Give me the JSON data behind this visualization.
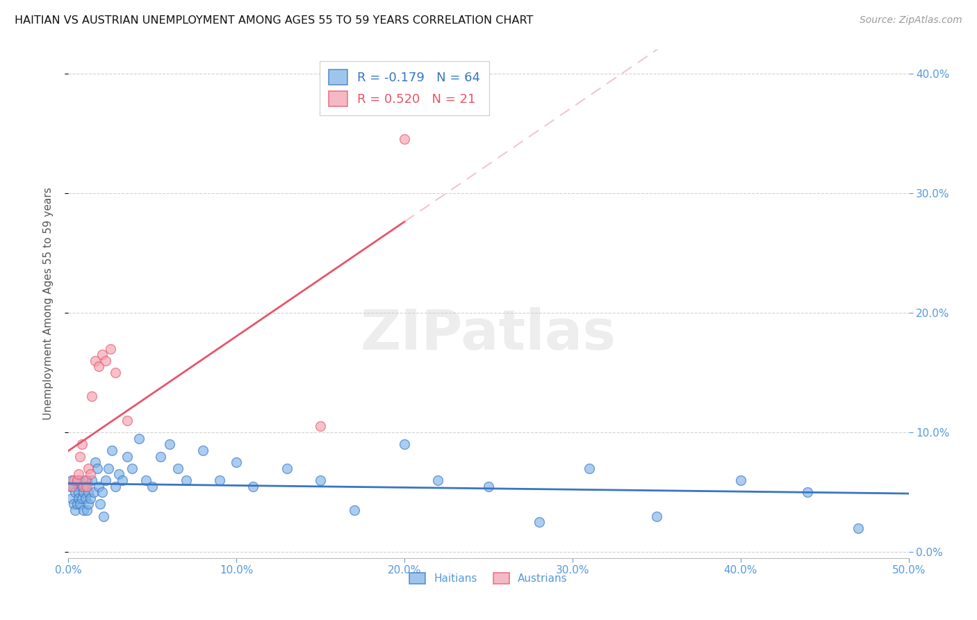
{
  "title": "HAITIAN VS AUSTRIAN UNEMPLOYMENT AMONG AGES 55 TO 59 YEARS CORRELATION CHART",
  "source": "Source: ZipAtlas.com",
  "ylabel": "Unemployment Among Ages 55 to 59 years",
  "xlim": [
    0.0,
    0.5
  ],
  "ylim": [
    -0.005,
    0.42
  ],
  "xticks": [
    0.0,
    0.1,
    0.2,
    0.3,
    0.4,
    0.5
  ],
  "yticks": [
    0.0,
    0.1,
    0.2,
    0.3,
    0.4
  ],
  "haitians_R": -0.179,
  "haitians_N": 64,
  "austrians_R": 0.52,
  "austrians_N": 21,
  "haitians_color": "#7EB3E8",
  "austrians_color": "#F4A0B0",
  "trendline_haitians_color": "#3875C4",
  "trendline_austrians_color": "#E8546A",
  "trendline_austrians_dashed_color": "#E8A0AA",
  "watermark": "ZIPatlas",
  "legend_haitians": "Haitians",
  "legend_austrians": "Austrians",
  "haitians_x": [
    0.001,
    0.002,
    0.002,
    0.003,
    0.003,
    0.004,
    0.004,
    0.005,
    0.005,
    0.006,
    0.006,
    0.006,
    0.007,
    0.007,
    0.008,
    0.008,
    0.009,
    0.009,
    0.01,
    0.01,
    0.011,
    0.011,
    0.012,
    0.012,
    0.013,
    0.014,
    0.015,
    0.016,
    0.017,
    0.018,
    0.019,
    0.02,
    0.021,
    0.022,
    0.024,
    0.026,
    0.028,
    0.03,
    0.032,
    0.035,
    0.038,
    0.042,
    0.046,
    0.05,
    0.055,
    0.06,
    0.065,
    0.07,
    0.08,
    0.09,
    0.1,
    0.11,
    0.13,
    0.15,
    0.17,
    0.2,
    0.22,
    0.25,
    0.28,
    0.31,
    0.35,
    0.4,
    0.44,
    0.47
  ],
  "haitians_y": [
    0.055,
    0.06,
    0.045,
    0.055,
    0.04,
    0.05,
    0.035,
    0.06,
    0.04,
    0.055,
    0.05,
    0.045,
    0.06,
    0.04,
    0.055,
    0.045,
    0.05,
    0.035,
    0.055,
    0.045,
    0.06,
    0.035,
    0.05,
    0.04,
    0.045,
    0.06,
    0.05,
    0.075,
    0.07,
    0.055,
    0.04,
    0.05,
    0.03,
    0.06,
    0.07,
    0.085,
    0.055,
    0.065,
    0.06,
    0.08,
    0.07,
    0.095,
    0.06,
    0.055,
    0.08,
    0.09,
    0.07,
    0.06,
    0.085,
    0.06,
    0.075,
    0.055,
    0.07,
    0.06,
    0.035,
    0.09,
    0.06,
    0.055,
    0.025,
    0.07,
    0.03,
    0.06,
    0.05,
    0.02
  ],
  "austrians_x": [
    0.002,
    0.003,
    0.005,
    0.006,
    0.007,
    0.008,
    0.009,
    0.01,
    0.011,
    0.012,
    0.013,
    0.014,
    0.016,
    0.018,
    0.02,
    0.022,
    0.025,
    0.028,
    0.035,
    0.15,
    0.2
  ],
  "austrians_y": [
    0.055,
    0.06,
    0.06,
    0.065,
    0.08,
    0.09,
    0.055,
    0.06,
    0.055,
    0.07,
    0.065,
    0.13,
    0.16,
    0.155,
    0.165,
    0.16,
    0.17,
    0.15,
    0.11,
    0.105,
    0.345
  ]
}
